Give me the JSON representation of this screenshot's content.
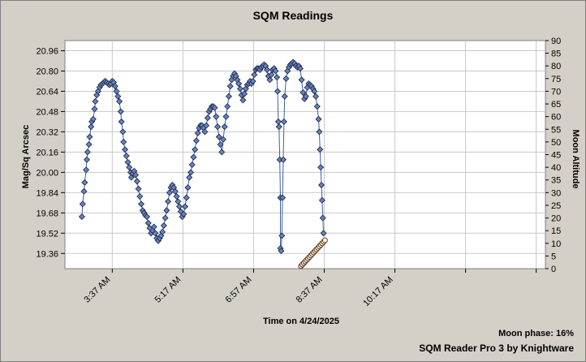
{
  "chart_data": {
    "type": "scatter",
    "title": "SQM Readings",
    "xlabel": "Time on 4/24/2025",
    "ylabel": "Mag/Sq Arcsec",
    "y2label": "Moon Altitude",
    "footer": {
      "moon_phase": "Moon phase: 16%",
      "brand": "SQM Reader Pro 3 by Knightware"
    },
    "grid": true,
    "x_unit": "minutes",
    "xlim": [
      150,
      830
    ],
    "ylim": [
      19.24,
      21.04
    ],
    "y2lim": [
      0,
      90
    ],
    "xticks": [
      {
        "value": 217,
        "label": "3:37 AM"
      },
      {
        "value": 317,
        "label": "5:17 AM"
      },
      {
        "value": 417,
        "label": "6:57 AM"
      },
      {
        "value": 517,
        "label": "8:37 AM"
      },
      {
        "value": 617,
        "label": "10:17 AM"
      }
    ],
    "xgrid_extra": [
      717,
      817
    ],
    "yticks": [
      {
        "value": 19.36,
        "label": "19.36"
      },
      {
        "value": 19.52,
        "label": "19.52"
      },
      {
        "value": 19.68,
        "label": "19.68"
      },
      {
        "value": 19.84,
        "label": "19.84"
      },
      {
        "value": 20.0,
        "label": "20.00"
      },
      {
        "value": 20.16,
        "label": "20.16"
      },
      {
        "value": 20.32,
        "label": "20.32"
      },
      {
        "value": 20.48,
        "label": "20.48"
      },
      {
        "value": 20.64,
        "label": "20.64"
      },
      {
        "value": 20.8,
        "label": "20.80"
      },
      {
        "value": 20.96,
        "label": "20.96"
      }
    ],
    "y2ticks": [
      {
        "value": 0,
        "label": "0"
      },
      {
        "value": 5,
        "label": "5"
      },
      {
        "value": 10,
        "label": "10"
      },
      {
        "value": 15,
        "label": "15"
      },
      {
        "value": 20,
        "label": "20"
      },
      {
        "value": 25,
        "label": "25"
      },
      {
        "value": 30,
        "label": "30"
      },
      {
        "value": 35,
        "label": "35"
      },
      {
        "value": 40,
        "label": "40"
      },
      {
        "value": 45,
        "label": "45"
      },
      {
        "value": 50,
        "label": "50"
      },
      {
        "value": 55,
        "label": "55"
      },
      {
        "value": 60,
        "label": "60"
      },
      {
        "value": 65,
        "label": "65"
      },
      {
        "value": 70,
        "label": "70"
      },
      {
        "value": 75,
        "label": "75"
      },
      {
        "value": 80,
        "label": "80"
      },
      {
        "value": 85,
        "label": "85"
      },
      {
        "value": 90,
        "label": "90"
      }
    ],
    "series": [
      {
        "marker": "diamond",
        "color": "#6a83b8",
        "axis": "left",
        "points": [
          [
            174,
            19.65
          ],
          [
            175,
            19.75
          ],
          [
            177,
            19.85
          ],
          [
            178,
            19.92
          ],
          [
            180,
            20.02
          ],
          [
            181,
            20.1
          ],
          [
            182,
            20.16
          ],
          [
            184,
            20.22
          ],
          [
            185,
            20.28
          ],
          [
            187,
            20.36
          ],
          [
            188,
            20.4
          ],
          [
            190,
            20.42
          ],
          [
            192,
            20.5
          ],
          [
            193,
            20.56
          ],
          [
            195,
            20.61
          ],
          [
            197,
            20.64
          ],
          [
            199,
            20.67
          ],
          [
            201,
            20.69
          ],
          [
            203,
            20.7
          ],
          [
            205,
            20.71
          ],
          [
            207,
            20.72
          ],
          [
            209,
            20.71
          ],
          [
            211,
            20.7
          ],
          [
            213,
            20.69
          ],
          [
            215,
            20.7
          ],
          [
            217,
            20.72
          ],
          [
            219,
            20.71
          ],
          [
            221,
            20.68
          ],
          [
            223,
            20.64
          ],
          [
            225,
            20.6
          ],
          [
            227,
            20.56
          ],
          [
            229,
            20.48
          ],
          [
            230,
            20.4
          ],
          [
            232,
            20.32
          ],
          [
            233,
            20.24
          ],
          [
            235,
            20.18
          ],
          [
            237,
            20.13
          ],
          [
            239,
            20.08
          ],
          [
            241,
            20.04
          ],
          [
            243,
            20.0
          ],
          [
            244,
            19.96
          ],
          [
            246,
            19.99
          ],
          [
            248,
            20.01
          ],
          [
            250,
            19.98
          ],
          [
            252,
            19.93
          ],
          [
            254,
            19.87
          ],
          [
            256,
            19.81
          ],
          [
            258,
            19.75
          ],
          [
            260,
            19.7
          ],
          [
            262,
            19.68
          ],
          [
            264,
            19.66
          ],
          [
            266,
            19.65
          ],
          [
            268,
            19.6
          ],
          [
            270,
            19.56
          ],
          [
            272,
            19.52
          ],
          [
            274,
            19.54
          ],
          [
            276,
            19.57
          ],
          [
            278,
            19.52
          ],
          [
            280,
            19.48
          ],
          [
            282,
            19.46
          ],
          [
            284,
            19.48
          ],
          [
            286,
            19.5
          ],
          [
            288,
            19.53
          ],
          [
            290,
            19.58
          ],
          [
            292,
            19.64
          ],
          [
            294,
            19.7
          ],
          [
            296,
            19.77
          ],
          [
            298,
            19.84
          ],
          [
            300,
            19.88
          ],
          [
            302,
            19.9
          ],
          [
            304,
            19.88
          ],
          [
            306,
            19.85
          ],
          [
            308,
            19.81
          ],
          [
            310,
            19.77
          ],
          [
            312,
            19.73
          ],
          [
            314,
            19.69
          ],
          [
            316,
            19.65
          ],
          [
            318,
            19.67
          ],
          [
            320,
            19.73
          ],
          [
            322,
            19.8
          ],
          [
            324,
            19.88
          ],
          [
            326,
            19.96
          ],
          [
            328,
            20.0
          ],
          [
            330,
            20.06
          ],
          [
            332,
            20.12
          ],
          [
            334,
            20.18
          ],
          [
            336,
            20.25
          ],
          [
            338,
            20.31
          ],
          [
            340,
            20.35
          ],
          [
            342,
            20.37
          ],
          [
            344,
            20.37
          ],
          [
            346,
            20.35
          ],
          [
            348,
            20.32
          ],
          [
            350,
            20.37
          ],
          [
            352,
            20.43
          ],
          [
            354,
            20.48
          ],
          [
            356,
            20.5
          ],
          [
            358,
            20.52
          ],
          [
            360,
            20.52
          ],
          [
            362,
            20.51
          ],
          [
            364,
            20.44
          ],
          [
            366,
            20.36
          ],
          [
            368,
            20.28
          ],
          [
            370,
            20.22
          ],
          [
            372,
            20.16
          ],
          [
            374,
            20.26
          ],
          [
            376,
            20.36
          ],
          [
            378,
            20.44
          ],
          [
            380,
            20.52
          ],
          [
            382,
            20.6
          ],
          [
            384,
            20.68
          ],
          [
            386,
            20.73
          ],
          [
            388,
            20.76
          ],
          [
            390,
            20.78
          ],
          [
            392,
            20.76
          ],
          [
            394,
            20.73
          ],
          [
            396,
            20.7
          ],
          [
            398,
            20.66
          ],
          [
            400,
            20.61
          ],
          [
            402,
            20.57
          ],
          [
            404,
            20.62
          ],
          [
            406,
            20.66
          ],
          [
            408,
            20.69
          ],
          [
            410,
            20.7
          ],
          [
            412,
            20.72
          ],
          [
            414,
            20.7
          ],
          [
            416,
            20.72
          ],
          [
            418,
            20.77
          ],
          [
            420,
            20.81
          ],
          [
            422,
            20.82
          ],
          [
            424,
            20.82
          ],
          [
            426,
            20.81
          ],
          [
            428,
            20.83
          ],
          [
            430,
            20.84
          ],
          [
            432,
            20.85
          ],
          [
            434,
            20.84
          ],
          [
            436,
            20.81
          ],
          [
            438,
            20.76
          ],
          [
            440,
            20.73
          ],
          [
            442,
            20.77
          ],
          [
            444,
            20.81
          ],
          [
            446,
            20.82
          ],
          [
            448,
            20.8
          ],
          [
            450,
            20.75
          ],
          [
            451,
            20.64
          ],
          [
            452,
            20.4
          ],
          [
            453,
            20.36
          ],
          [
            454,
            20.1
          ],
          [
            455,
            19.8
          ],
          [
            455,
            19.4
          ],
          [
            456,
            19.38
          ],
          [
            457,
            19.5
          ],
          [
            458,
            19.8
          ],
          [
            459,
            20.1
          ],
          [
            460,
            20.4
          ],
          [
            461,
            20.6
          ],
          [
            463,
            20.74
          ],
          [
            465,
            20.8
          ],
          [
            467,
            20.83
          ],
          [
            469,
            20.85
          ],
          [
            471,
            20.86
          ],
          [
            473,
            20.87
          ],
          [
            475,
            20.86
          ],
          [
            477,
            20.84
          ],
          [
            479,
            20.83
          ],
          [
            481,
            20.84
          ],
          [
            483,
            20.82
          ],
          [
            485,
            20.73
          ],
          [
            487,
            20.63
          ],
          [
            489,
            20.58
          ],
          [
            491,
            20.6
          ],
          [
            493,
            20.67
          ],
          [
            495,
            20.7
          ],
          [
            497,
            20.69
          ],
          [
            499,
            20.68
          ],
          [
            501,
            20.66
          ],
          [
            503,
            20.64
          ],
          [
            505,
            20.6
          ],
          [
            507,
            20.52
          ],
          [
            509,
            20.42
          ],
          [
            510,
            20.32
          ],
          [
            511,
            20.18
          ],
          [
            512,
            20.04
          ],
          [
            513,
            19.9
          ],
          [
            514,
            19.78
          ],
          [
            515,
            19.64
          ],
          [
            516,
            19.52
          ]
        ]
      },
      {
        "marker": "circle",
        "color": "#fff1d8",
        "axis": "right",
        "points": [
          [
            484,
            1.0
          ],
          [
            486,
            1.6
          ],
          [
            488,
            2.2
          ],
          [
            490,
            2.8
          ],
          [
            492,
            3.4
          ],
          [
            494,
            4.0
          ],
          [
            496,
            4.6
          ],
          [
            498,
            5.2
          ],
          [
            500,
            5.8
          ],
          [
            502,
            6.4
          ],
          [
            504,
            7.0
          ],
          [
            506,
            7.6
          ],
          [
            508,
            8.2
          ],
          [
            510,
            8.8
          ],
          [
            512,
            9.4
          ],
          [
            514,
            10.0
          ],
          [
            516,
            10.6
          ],
          [
            518,
            11.2
          ]
        ]
      }
    ]
  }
}
